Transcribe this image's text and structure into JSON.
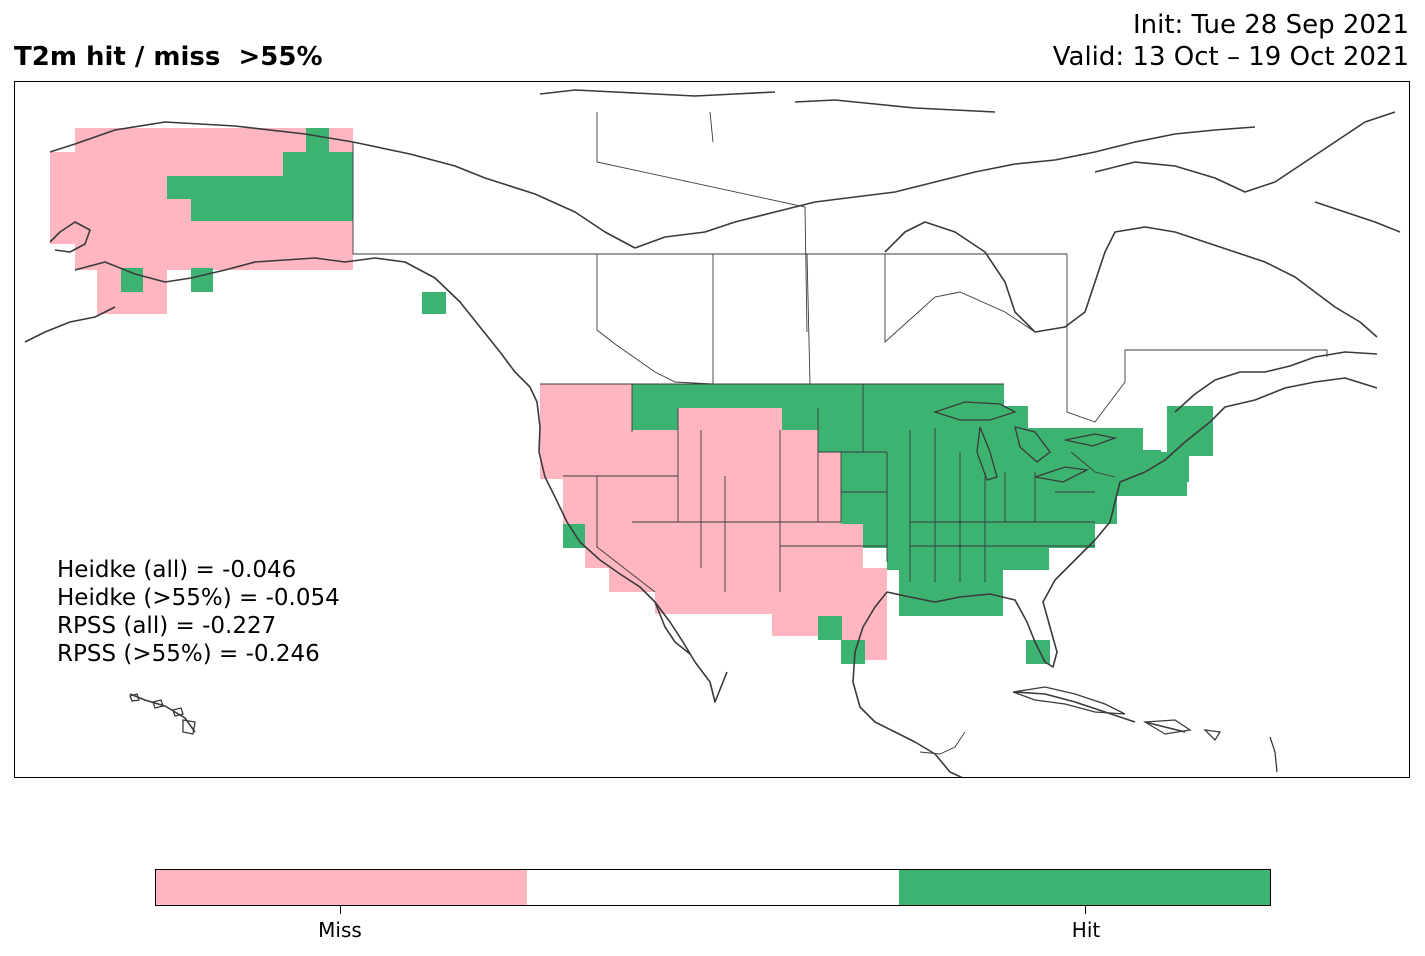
{
  "header": {
    "title": "T2m hit / miss  >55%",
    "init": "Init: Tue 28 Sep 2021",
    "valid": "Valid: 13 Oct – 19 Oct 2021"
  },
  "stats": [
    "Heidke (all) = -0.046",
    "Heidke (>55%) = -0.054",
    "RPSS (all) = -0.227",
    "RPSS (>55%) = -0.246"
  ],
  "colorbar": {
    "miss_color": "#ffb6c1",
    "neutral_color": "#ffffff",
    "hit_color": "#3cb371",
    "miss_label": "Miss",
    "hit_label": "Hit"
  },
  "map": {
    "projection": "North America",
    "border_color": "#3a3a3a"
  }
}
